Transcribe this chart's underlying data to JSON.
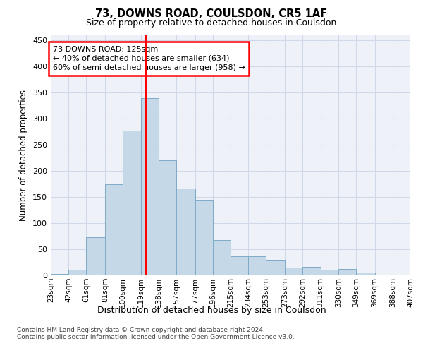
{
  "title1": "73, DOWNS ROAD, COULSDON, CR5 1AF",
  "title2": "Size of property relative to detached houses in Coulsdon",
  "xlabel": "Distribution of detached houses by size in Coulsdon",
  "ylabel": "Number of detached properties",
  "footnote": "Contains HM Land Registry data © Crown copyright and database right 2024.\nContains public sector information licensed under the Open Government Licence v3.0.",
  "bin_labels": [
    "23sqm",
    "42sqm",
    "61sqm",
    "81sqm",
    "100sqm",
    "119sqm",
    "138sqm",
    "157sqm",
    "177sqm",
    "196sqm",
    "215sqm",
    "234sqm",
    "253sqm",
    "273sqm",
    "292sqm",
    "311sqm",
    "330sqm",
    "349sqm",
    "369sqm",
    "388sqm",
    "407sqm"
  ],
  "bin_edges": [
    23,
    42,
    61,
    81,
    100,
    119,
    138,
    157,
    177,
    196,
    215,
    234,
    253,
    273,
    292,
    311,
    330,
    349,
    369,
    388,
    407
  ],
  "bar_heights": [
    3,
    11,
    73,
    175,
    277,
    340,
    221,
    167,
    145,
    68,
    37,
    37,
    30,
    15,
    16,
    11,
    12,
    6,
    1,
    0
  ],
  "bar_color": "#c5d8e8",
  "bar_edge_color": "#7eaac8",
  "vline_x": 125,
  "vline_color": "red",
  "annotation_text": "73 DOWNS ROAD: 125sqm\n← 40% of detached houses are smaller (634)\n60% of semi-detached houses are larger (958) →",
  "annotation_box_color": "white",
  "annotation_box_edge_color": "red",
  "grid_color": "#d0d8e8",
  "bg_color": "#eef2f8",
  "ylim": [
    0,
    460
  ],
  "yticks": [
    0,
    50,
    100,
    150,
    200,
    250,
    300,
    350,
    400,
    450
  ]
}
